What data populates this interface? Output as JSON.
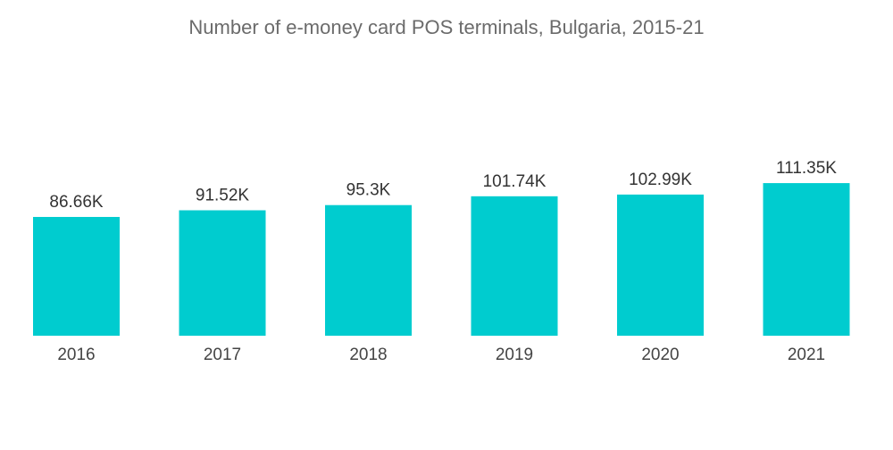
{
  "chart_data": {
    "type": "bar",
    "title": "Number of e-money card POS terminals, Bulgaria, 2015-21",
    "xlabel": "",
    "ylabel": "",
    "categories": [
      "2016",
      "2017",
      "2018",
      "2019",
      "2020",
      "2021"
    ],
    "values": [
      86.66,
      91.52,
      95.3,
      101.74,
      102.99,
      111.35
    ],
    "value_labels": [
      "86.66K",
      "91.52K",
      "95.3K",
      "101.74K",
      "102.99K",
      "111.35K"
    ],
    "unit": "K",
    "ylim": [
      0,
      120
    ],
    "grid": false,
    "legend": "none",
    "bar_color": "#00cccf"
  }
}
